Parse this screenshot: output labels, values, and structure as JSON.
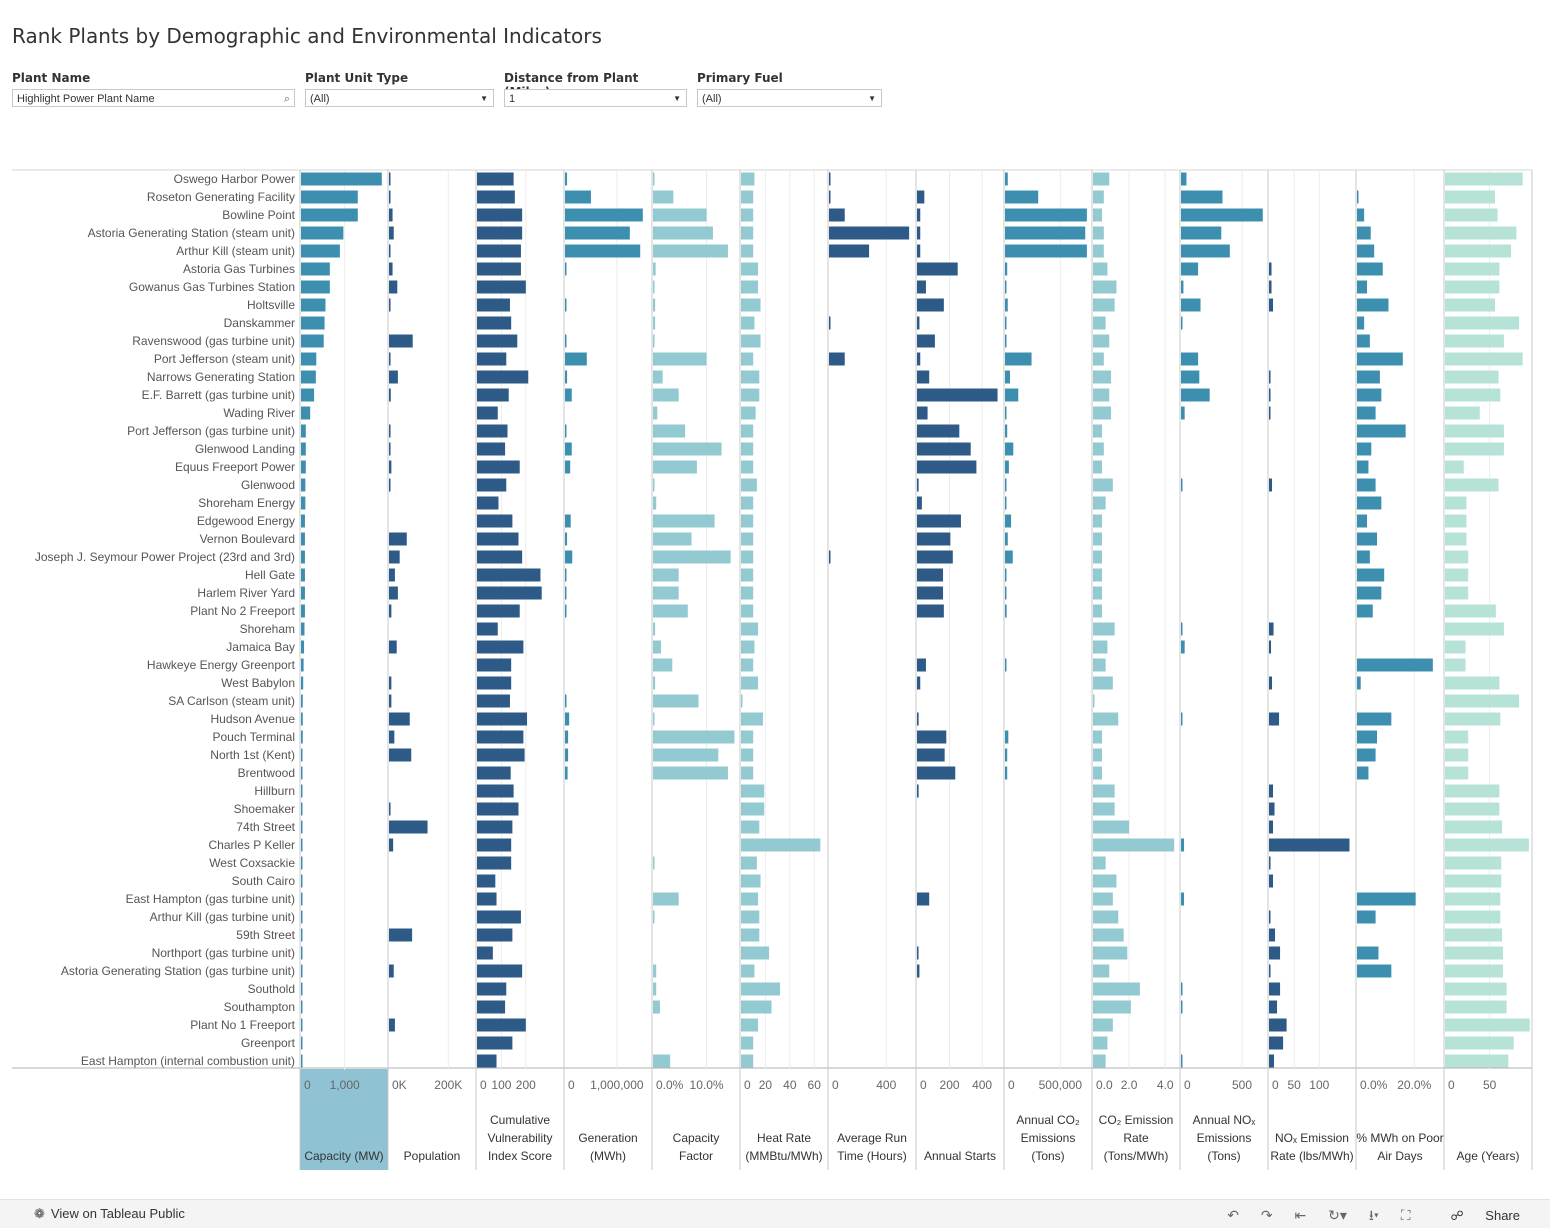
{
  "title": "Rank Plants by Demographic and Environmental Indicators",
  "filters": [
    {
      "label": "Plant Name",
      "value": "Highlight Power Plant Name",
      "kind": "search"
    },
    {
      "label": "Plant Unit Type",
      "value": "(All)",
      "kind": "dropdown"
    },
    {
      "label": "Distance from Plant (Miles)",
      "value": "1",
      "kind": "dropdown"
    },
    {
      "label": "Primary Fuel",
      "value": "(All)",
      "kind": "dropdown"
    }
  ],
  "footer": {
    "view_label": "View on Tableau Public",
    "share_label": "Share",
    "icons": [
      "undo-icon",
      "redo-icon",
      "revert-icon",
      "refresh-icon",
      "download-icon",
      "fullscreen-icon",
      "share-icon"
    ]
  },
  "chart_data": {
    "type": "bar",
    "orientation": "horizontal",
    "grid": true,
    "sorted_by": "Capacity (MW)",
    "colors": {
      "dark": "#2e5a87",
      "mid": "#3d8fb0",
      "light": "#93cad2",
      "pale": "#b6e2d8",
      "header_highlight": "#8fc3d4"
    },
    "categories": [
      "Oswego Harbor Power",
      "Roseton Generating Facility",
      "Bowline Point",
      "Astoria Generating Station (steam unit)",
      "Arthur Kill (steam unit)",
      "Astoria Gas Turbines",
      "Gowanus Gas Turbines Station",
      "Holtsville",
      "Danskammer",
      "Ravenswood (gas turbine unit)",
      "Port Jefferson (steam unit)",
      "Narrows Generating Station",
      "E.F. Barrett (gas turbine unit)",
      "Wading River",
      "Port Jefferson (gas turbine unit)",
      "Glenwood Landing",
      "Equus Freeport Power",
      "Glenwood",
      "Shoreham Energy",
      "Edgewood Energy",
      "Vernon Boulevard",
      "Joseph J. Seymour Power Project (23rd and 3rd)",
      "Hell Gate",
      "Harlem River Yard",
      "Plant No 2 Freeport",
      "Shoreham",
      "Jamaica Bay",
      "Hawkeye Energy Greenport",
      "West Babylon",
      "SA Carlson (steam unit)",
      "Hudson Avenue",
      "Pouch Terminal",
      "North 1st (Kent)",
      "Brentwood",
      "Hillburn",
      "Shoemaker",
      "74th Street",
      "Charles P Keller",
      "West Coxsackie",
      "South Cairo",
      "East Hampton (gas turbine unit)",
      "Arthur Kill (gas turbine unit)",
      "59th Street",
      "Northport (gas turbine unit)",
      "Astoria Generating Station (gas turbine unit)",
      "Southold",
      "Southampton",
      "Plant No 1 Freeport",
      "Greenport",
      "East Hampton (internal combustion unit)"
    ],
    "measures": [
      {
        "name": "Capacity (MW)",
        "color": "mid",
        "max": 1900,
        "ticks": [
          {
            "label": "0",
            "v": 0
          },
          {
            "label": "1,000",
            "v": 1000
          }
        ],
        "values": [
          1850,
          1300,
          1300,
          970,
          890,
          660,
          660,
          560,
          540,
          520,
          350,
          340,
          300,
          210,
          110,
          110,
          110,
          100,
          100,
          90,
          90,
          90,
          90,
          90,
          90,
          80,
          70,
          60,
          50,
          40,
          40,
          40,
          30,
          30,
          20,
          20,
          20,
          20,
          20,
          20,
          20,
          20,
          20,
          20,
          20,
          20,
          20,
          20,
          20,
          10
        ]
      },
      {
        "name": "Population",
        "color": "dark",
        "max": 280000,
        "ticks": [
          {
            "label": "0K",
            "v": 0
          },
          {
            "label": "200K",
            "v": 200000
          }
        ],
        "values": [
          4000,
          4000,
          12000,
          16000,
          4000,
          12000,
          28000,
          4000,
          0,
          80000,
          2000,
          30000,
          6000,
          0,
          3000,
          2000,
          8000,
          2000,
          0,
          0,
          60000,
          36000,
          20000,
          30000,
          8000,
          0,
          26000,
          0,
          8000,
          8000,
          70000,
          18000,
          75000,
          0,
          0,
          2000,
          130000,
          14000,
          0,
          0,
          0,
          0,
          78000,
          0,
          16000,
          0,
          0,
          20000,
          0,
          0
        ]
      },
      {
        "name": "Cumulative Vulnerability Index Score",
        "color": "dark",
        "max": 340,
        "ticks": [
          {
            "label": "0",
            "v": 0
          },
          {
            "label": "100",
            "v": 100
          },
          {
            "label": "200",
            "v": 200
          }
        ],
        "values": [
          150,
          155,
          185,
          185,
          180,
          180,
          200,
          135,
          140,
          165,
          120,
          210,
          130,
          85,
          125,
          115,
          175,
          120,
          88,
          145,
          170,
          185,
          260,
          265,
          175,
          85,
          190,
          140,
          140,
          135,
          205,
          190,
          195,
          138,
          150,
          170,
          145,
          140,
          140,
          75,
          80,
          180,
          145,
          65,
          185,
          120,
          115,
          200,
          145,
          80
        ]
      },
      {
        "name": "Generation (MWh)",
        "color": "mid",
        "max": 1600000,
        "ticks": [
          {
            "label": "0",
            "v": 0
          },
          {
            "label": "1,000,000",
            "v": 1000000
          }
        ],
        "values": [
          40000,
          500000,
          1500000,
          1250000,
          1450000,
          20000,
          0,
          10000,
          0,
          10000,
          420000,
          40000,
          130000,
          0,
          20000,
          130000,
          100000,
          0,
          0,
          110000,
          40000,
          140000,
          20000,
          20000,
          10000,
          0,
          0,
          0,
          0,
          20000,
          80000,
          60000,
          60000,
          50000,
          0,
          0,
          0,
          0,
          0,
          0,
          0,
          0,
          0,
          0,
          0,
          0,
          0,
          0,
          0,
          0
        ]
      },
      {
        "name": "Capacity Factor",
        "color": "light",
        "max": 0.155,
        "ticks": [
          {
            "label": "0.0%",
            "v": 0
          },
          {
            "label": "10.0%",
            "v": 0.1
          }
        ],
        "values": [
          0.002,
          0.038,
          0.1,
          0.112,
          0.14,
          0.005,
          0.002,
          0.004,
          0.004,
          0.002,
          0.1,
          0.018,
          0.048,
          0.008,
          0.06,
          0.128,
          0.082,
          0.002,
          0.006,
          0.115,
          0.072,
          0.145,
          0.048,
          0.048,
          0.065,
          0.004,
          0.015,
          0.036,
          0.004,
          0.085,
          0.002,
          0.152,
          0.122,
          0.14,
          0,
          0,
          0,
          0,
          0.002,
          0,
          0.048,
          0.002,
          0,
          0,
          0.006,
          0.006,
          0.013,
          0,
          0,
          0.032
        ]
      },
      {
        "name": "Heat Rate (MMBtu/MWh)",
        "color": "light",
        "max": 68,
        "ticks": [
          {
            "label": "0",
            "v": 0
          },
          {
            "label": "20",
            "v": 20
          },
          {
            "label": "40",
            "v": 40
          },
          {
            "label": "60",
            "v": 60
          }
        ],
        "values": [
          11,
          10,
          10,
          10,
          10,
          14,
          14,
          16,
          11,
          16,
          10,
          15,
          15,
          12,
          10,
          10,
          10,
          13,
          10,
          10,
          10,
          10,
          10,
          10,
          10,
          14,
          11,
          10,
          14,
          0.5,
          18,
          10,
          10,
          10,
          19,
          19,
          15,
          65,
          13,
          16,
          14,
          15,
          15,
          23,
          11,
          32,
          25,
          14,
          10,
          10
        ]
      },
      {
        "name": "Average Run Time (Hours)",
        "color": "dark",
        "max": 580,
        "ticks": [
          {
            "label": "0",
            "v": 0
          },
          {
            "label": "400",
            "v": 400
          }
        ],
        "values": [
          10,
          10,
          110,
          560,
          280,
          0,
          0,
          0,
          5,
          0,
          110,
          0,
          0,
          0,
          0,
          0,
          0,
          0,
          0,
          0,
          0,
          5,
          0,
          0,
          0,
          0,
          0,
          0,
          0,
          0,
          0,
          0,
          0,
          0,
          0,
          0,
          0,
          0,
          0,
          0,
          0,
          0,
          0,
          0,
          0,
          0,
          0,
          0,
          0,
          0
        ]
      },
      {
        "name": "Annual Starts",
        "color": "dark",
        "max": 510,
        "ticks": [
          {
            "label": "0",
            "v": 0
          },
          {
            "label": "200",
            "v": 200
          },
          {
            "label": "400",
            "v": 400
          }
        ],
        "values": [
          0,
          45,
          20,
          20,
          20,
          250,
          55,
          165,
          15,
          110,
          20,
          75,
          495,
          65,
          260,
          330,
          365,
          10,
          30,
          270,
          205,
          220,
          160,
          160,
          165,
          0,
          0,
          55,
          20,
          0,
          10,
          180,
          170,
          235,
          10,
          0,
          0,
          0,
          0,
          0,
          75,
          0,
          0,
          5,
          15,
          0,
          0,
          0,
          0,
          0
        ]
      },
      {
        "name": "Annual CO₂ Emissions (Tons)",
        "color": "mid",
        "max": 750000,
        "ticks": [
          {
            "label": "0",
            "v": 0
          },
          {
            "label": "500,000",
            "v": 500000
          }
        ],
        "values": [
          25000,
          300000,
          740000,
          725000,
          740000,
          20000,
          10000,
          25000,
          5000,
          5000,
          240000,
          45000,
          120000,
          5000,
          20000,
          75000,
          35000,
          5000,
          5000,
          55000,
          25000,
          70000,
          10000,
          10000,
          15000,
          0,
          0,
          10000,
          0,
          0,
          0,
          30000,
          20000,
          20000,
          0,
          0,
          0,
          0,
          0,
          0,
          0,
          0,
          0,
          0,
          0,
          0,
          0,
          0,
          0,
          0
        ]
      },
      {
        "name": "CO₂ Emission Rate (Tons/MWh)",
        "color": "light",
        "max": 4.6,
        "ticks": [
          {
            "label": "0.0",
            "v": 0
          },
          {
            "label": "2.0",
            "v": 2
          },
          {
            "label": "4.0",
            "v": 4
          }
        ],
        "values": [
          0.9,
          0.6,
          0.5,
          0.6,
          0.6,
          0.8,
          1.3,
          1.2,
          0.7,
          0.9,
          0.6,
          1.0,
          0.9,
          1.0,
          0.5,
          0.6,
          0.5,
          1.1,
          0.7,
          0.5,
          0.5,
          0.5,
          0.5,
          0.5,
          0.5,
          1.2,
          0.8,
          0.7,
          1.1,
          0.05,
          1.4,
          0.5,
          0.5,
          0.5,
          1.2,
          1.2,
          2.0,
          4.5,
          0.7,
          1.3,
          1.1,
          1.4,
          1.7,
          1.9,
          0.9,
          2.6,
          2.1,
          1.1,
          0.8,
          0.7
        ]
      },
      {
        "name": "Annual NOₓ Emissions (Tons)",
        "color": "mid",
        "max": 680,
        "ticks": [
          {
            "label": "0",
            "v": 0
          },
          {
            "label": "500",
            "v": 500
          }
        ],
        "values": [
          45,
          340,
          670,
          330,
          400,
          140,
          20,
          160,
          5,
          0,
          140,
          150,
          235,
          30,
          0,
          0,
          0,
          10,
          0,
          0,
          0,
          0,
          0,
          0,
          0,
          10,
          30,
          0,
          0,
          0,
          5,
          0,
          0,
          0,
          0,
          0,
          0,
          25,
          0,
          0,
          25,
          0,
          0,
          0,
          0,
          5,
          5,
          0,
          0,
          5
        ]
      },
      {
        "name": "NOₓ Emission Rate (lbs/MWh)",
        "color": "dark",
        "max": 165,
        "ticks": [
          {
            "label": "0",
            "v": 0
          },
          {
            "label": "50",
            "v": 50
          },
          {
            "label": "100",
            "v": 100
          }
        ],
        "values": [
          0,
          0,
          0,
          0,
          0,
          5,
          5,
          8,
          0,
          0,
          0,
          3,
          3,
          2,
          0,
          0,
          0,
          6,
          0,
          0,
          0,
          0,
          0,
          0,
          0,
          9,
          4,
          0,
          6,
          0,
          20,
          0,
          0,
          0,
          8,
          11,
          8,
          160,
          2,
          8,
          0,
          2,
          12,
          22,
          3,
          22,
          16,
          35,
          28,
          10
        ]
      },
      {
        "name": "% MWh on Poor Air Days",
        "color": "mid",
        "max": 0.29,
        "ticks": [
          {
            "label": "0.0%",
            "v": 0
          },
          {
            "label": "20.0%",
            "v": 0.2
          }
        ],
        "values": [
          0,
          0.002,
          0.025,
          0.048,
          0.06,
          0.09,
          0.035,
          0.11,
          0.025,
          0.045,
          0.16,
          0.08,
          0.085,
          0.065,
          0.17,
          0.05,
          0.04,
          0.065,
          0.085,
          0.035,
          0.07,
          0.045,
          0.095,
          0.085,
          0.055,
          0,
          0,
          0.265,
          0.013,
          0,
          0.12,
          0.07,
          0.065,
          0.04,
          0,
          0,
          0,
          0,
          0,
          0,
          0.205,
          0.065,
          0,
          0.075,
          0.12,
          0,
          0,
          0,
          0,
          0
        ]
      },
      {
        "name": "Age (Years)",
        "color": "pale",
        "max": 93,
        "ticks": [
          {
            "label": "0",
            "v": 0
          },
          {
            "label": "50",
            "v": 50
          }
        ],
        "values": [
          87,
          56,
          59,
          80,
          74,
          61,
          61,
          56,
          83,
          66,
          87,
          60,
          62,
          39,
          66,
          66,
          21,
          60,
          24,
          24,
          24,
          26,
          26,
          26,
          57,
          66,
          23,
          23,
          61,
          83,
          62,
          26,
          26,
          26,
          61,
          61,
          64,
          94,
          63,
          63,
          62,
          62,
          64,
          65,
          65,
          69,
          69,
          95,
          77,
          71
        ]
      }
    ]
  }
}
